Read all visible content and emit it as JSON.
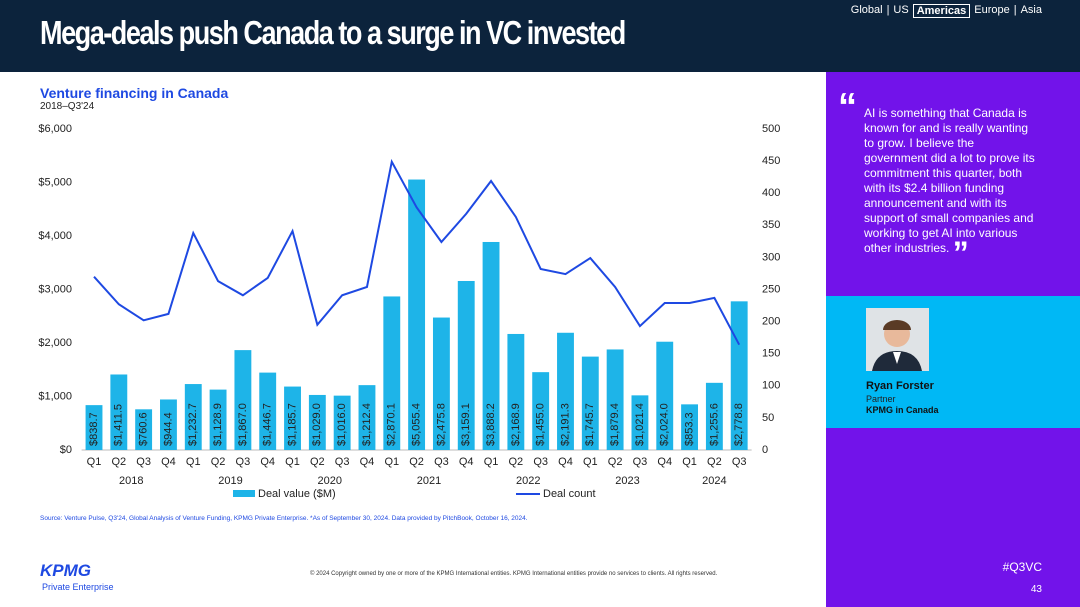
{
  "header": {
    "title": "Mega-deals push Canada to a surge in VC invested",
    "nav": [
      "Global",
      "|",
      "US",
      "Americas",
      "Europe",
      "|",
      "Asia"
    ]
  },
  "chart_data": {
    "type": "bar",
    "title": "Venture financing in Canada",
    "subtitle": "2018–Q3'24",
    "categories": [
      "Q1",
      "Q2",
      "Q3",
      "Q4",
      "Q1",
      "Q2",
      "Q3",
      "Q4",
      "Q1",
      "Q2",
      "Q3",
      "Q4",
      "Q1",
      "Q2",
      "Q3",
      "Q4",
      "Q1",
      "Q2",
      "Q3",
      "Q4",
      "Q1",
      "Q2",
      "Q3",
      "Q4",
      "Q1",
      "Q2",
      "Q3"
    ],
    "years": [
      {
        "label": "2018",
        "start": 0,
        "end": 3
      },
      {
        "label": "2019",
        "start": 4,
        "end": 7
      },
      {
        "label": "2020",
        "start": 8,
        "end": 11
      },
      {
        "label": "2021",
        "start": 12,
        "end": 15
      },
      {
        "label": "2022",
        "start": 16,
        "end": 19
      },
      {
        "label": "2023",
        "start": 20,
        "end": 23
      },
      {
        "label": "2024",
        "start": 24,
        "end": 26
      }
    ],
    "series": [
      {
        "name": "Deal value ($M)",
        "color": "#1eb4e8",
        "type": "bar",
        "values": [
          838.7,
          1411.5,
          760.6,
          944.4,
          1232.7,
          1128.9,
          1867.0,
          1446.7,
          1185.7,
          1029.0,
          1016.0,
          1212.4,
          2870.1,
          5055.4,
          2475.8,
          3159.1,
          3888.2,
          2168.9,
          1455.0,
          2191.3,
          1745.7,
          1879.4,
          1021.4,
          2024.0,
          853.3,
          1255.6,
          2778.8
        ],
        "value_labels": [
          "$838.7",
          "$1,411.5",
          "$760.6",
          "$944.4",
          "$1,232.7",
          "$1,128.9",
          "$1,867.0",
          "$1,446.7",
          "$1,185.7",
          "$1,029.0",
          "$1,016.0",
          "$1,212.4",
          "$2,870.1",
          "$5,055.4",
          "$2,475.8",
          "$3,159.1",
          "$3,888.2",
          "$2,168.9",
          "$1,455.0",
          "$2,191.3",
          "$1,745.7",
          "$1,879.4",
          "$1,021.4",
          "$2,024.0",
          "$853.3",
          "$1,255.6",
          "$2,778.8"
        ]
      },
      {
        "name": "Deal count",
        "color": "#1e49e2",
        "type": "line",
        "axis": "y2",
        "values": [
          270,
          227,
          202,
          212,
          338,
          263,
          241,
          268,
          341,
          195,
          241,
          254,
          449,
          378,
          324,
          368,
          419,
          363,
          282,
          274,
          299,
          254,
          193,
          229,
          229,
          237,
          164
        ]
      }
    ],
    "ylim": [
      0,
      6000
    ],
    "yticks": [
      {
        "value": 0,
        "label": "$0"
      },
      {
        "value": 1000,
        "label": "$1,000"
      },
      {
        "value": 2000,
        "label": "$2,000"
      },
      {
        "value": 3000,
        "label": "$3,000"
      },
      {
        "value": 4000,
        "label": "$4,000"
      },
      {
        "value": 5000,
        "label": "$5,000"
      },
      {
        "value": 6000,
        "label": "$6,000"
      }
    ],
    "y2lim": [
      0,
      500
    ],
    "y2ticks": [
      0,
      50,
      100,
      150,
      200,
      250,
      300,
      350,
      400,
      450,
      500
    ],
    "source": "Source: Venture Pulse, Q3'24, Global Analysis of Venture Funding, KPMG Private Enterprise. *As of September 30, 2024. Data provided by PitchBook, October 16, 2024."
  },
  "quote": {
    "open": "“",
    "text": "AI is something that Canada is known for and is really wanting to grow. I believe the government did a lot to prove its commitment this quarter, both with its $2.4 billion funding announcement and with its support of small companies and working to get AI into various other industries.",
    "close": "”"
  },
  "person": {
    "name": "Ryan Forster",
    "role": "Partner",
    "company": "KPMG in Canada"
  },
  "footer": {
    "logo": "KPMG",
    "logo_sub": "Private Enterprise",
    "copyright": "© 2024 Copyright owned by one or more of the KPMG International entities. KPMG International entities provide no services to clients. All rights reserved.",
    "hashtag": "#Q3VC",
    "page": "43"
  }
}
